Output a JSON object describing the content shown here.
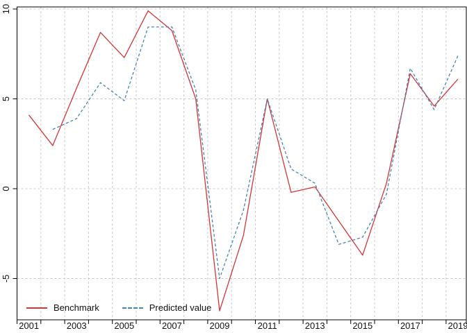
{
  "chart": {
    "background": "#ffffff",
    "box_color": "#000000",
    "grid_color": "#c9c9c9",
    "label_color": "#111111",
    "legend": [
      {
        "label": "Benchmark",
        "color": "#d33434",
        "style": "solid"
      },
      {
        "label": "Predicted value",
        "color": "#4682b4",
        "style": "dashed"
      }
    ],
    "x_tick_labels": [
      "2001",
      "2003",
      "2005",
      "2007",
      "2009",
      "2011",
      "2013",
      "2015",
      "2017",
      "2019"
    ],
    "y_tick_labels": [
      "10",
      "5",
      "0",
      "-5"
    ]
  },
  "chart_data": {
    "type": "line",
    "title": "",
    "xlabel": "",
    "ylabel": "",
    "grid": true,
    "legend_position": "bottom-left",
    "x": [
      2001,
      2002,
      2003,
      2004,
      2005,
      2006,
      2007,
      2008,
      2009,
      2010,
      2011,
      2012,
      2013,
      2014,
      2015,
      2016,
      2017,
      2018,
      2019
    ],
    "xlim": [
      2000.5,
      2019.9
    ],
    "ylim": [
      -7.3,
      10.1
    ],
    "y_ticks": [
      10,
      5,
      0,
      -5
    ],
    "series": [
      {
        "name": "Benchmark",
        "color": "#d33434",
        "line_style": "solid",
        "values": [
          4.1,
          2.4,
          5.6,
          8.7,
          7.3,
          9.9,
          8.8,
          5.0,
          -6.8,
          -2.6,
          5.0,
          -0.2,
          0.1,
          -1.8,
          -3.7,
          0.3,
          6.4,
          4.6,
          6.1
        ]
      },
      {
        "name": "Predicted value",
        "color": "#4682b4",
        "line_style": "dashed",
        "values": [
          null,
          3.3,
          3.9,
          5.9,
          4.9,
          9.0,
          9.0,
          5.5,
          -5.0,
          -1.2,
          5.0,
          1.1,
          0.3,
          -3.1,
          -2.7,
          -0.3,
          6.7,
          4.4,
          7.4
        ]
      }
    ]
  }
}
